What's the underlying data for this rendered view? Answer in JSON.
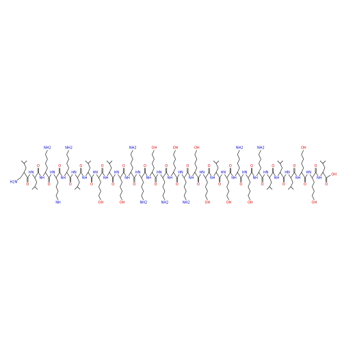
{
  "molecule": {
    "n_terminal": "H2N",
    "c_terminal": "OH",
    "residues": [
      {
        "n": "NH",
        "o": "O"
      },
      {
        "n": "HN",
        "o": "O"
      },
      {
        "n": "NH",
        "o": "O",
        "side": "NH2"
      },
      {
        "n": "HN",
        "o": "O",
        "side": "NH"
      },
      {
        "n": "NH",
        "o": "O",
        "side": "NH2"
      },
      {
        "n": "HN",
        "o": "O"
      },
      {
        "n": "NH",
        "o": "O"
      },
      {
        "n": "HN",
        "o": "O",
        "side": "OH"
      },
      {
        "n": "NH",
        "o": "O"
      },
      {
        "n": "HN",
        "o": "O",
        "side": "OH"
      },
      {
        "n": "NH",
        "o": "O",
        "side": "NH2"
      },
      {
        "n": "HN",
        "o": "O",
        "side": "NH2"
      },
      {
        "n": "NH",
        "o": "O",
        "side": "OH"
      },
      {
        "n": "HN",
        "o": "O",
        "side": "NH2"
      },
      {
        "n": "NH",
        "o": "O",
        "side": "OH"
      },
      {
        "n": "HN",
        "o": "O",
        "side": "NH2"
      },
      {
        "n": "NH",
        "o": "O",
        "side": "OH"
      },
      {
        "n": "HN",
        "o": "O",
        "side": "OH"
      },
      {
        "n": "NH",
        "o": "O"
      },
      {
        "n": "HN",
        "o": "O",
        "side": "OH"
      },
      {
        "n": "NH",
        "o": "O",
        "side": "NH2"
      },
      {
        "n": "HN",
        "o": "O",
        "side": "OH"
      },
      {
        "n": "NH",
        "o": "O",
        "side": "NH2"
      },
      {
        "n": "HN",
        "o": "O"
      },
      {
        "n": "NH",
        "o": "O"
      },
      {
        "n": "HN",
        "o": "O"
      },
      {
        "n": "NH",
        "o": "O",
        "side": "OH"
      },
      {
        "n": "HN",
        "o": "O",
        "side": "OH"
      },
      {
        "n": "NH",
        "o": "O"
      }
    ]
  }
}
